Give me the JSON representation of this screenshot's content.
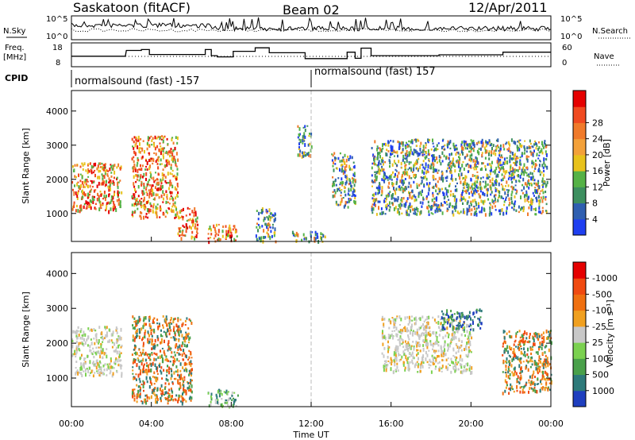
{
  "header": {
    "station": "Saskatoon (fitACF)",
    "beam": "Beam 02",
    "date": "12/Apr/2011"
  },
  "noise_panel": {
    "left_label": "N.Sky",
    "left_ticks": [
      "10^5",
      "10^0"
    ],
    "right_label": "N.Search",
    "right_ticks": [
      "10^5",
      "10^0"
    ]
  },
  "freq_panel": {
    "left_label_line1": "Freq.",
    "left_label_line2": "[MHz]",
    "left_ticks": [
      "18",
      "8"
    ],
    "right_label": "Nave",
    "right_ticks": [
      "60",
      "0"
    ],
    "steps": [
      [
        0,
        0.58
      ],
      [
        2.7,
        0.58
      ],
      [
        2.75,
        0.25
      ],
      [
        3.5,
        0.25
      ],
      [
        3.5,
        0.2
      ],
      [
        3.9,
        0.2
      ],
      [
        3.9,
        0.48
      ],
      [
        6.7,
        0.48
      ],
      [
        6.7,
        0.2
      ],
      [
        7.0,
        0.2
      ],
      [
        7.0,
        0.55
      ],
      [
        7.3,
        0.55
      ],
      [
        7.3,
        0.62
      ],
      [
        8.1,
        0.62
      ],
      [
        8.1,
        0.3
      ],
      [
        9.2,
        0.3
      ],
      [
        9.2,
        0.1
      ],
      [
        9.9,
        0.1
      ],
      [
        9.9,
        0.38
      ],
      [
        11.7,
        0.38
      ],
      [
        11.7,
        0.72
      ],
      [
        13.8,
        0.72
      ],
      [
        13.8,
        0.35
      ],
      [
        14.2,
        0.35
      ],
      [
        14.2,
        0.7
      ],
      [
        14.5,
        0.7
      ],
      [
        14.5,
        0.12
      ],
      [
        15.0,
        0.12
      ],
      [
        15.0,
        0.55
      ],
      [
        18.4,
        0.55
      ],
      [
        18.4,
        0.5
      ],
      [
        21.6,
        0.5
      ],
      [
        21.6,
        0.35
      ],
      [
        24,
        0.35
      ]
    ]
  },
  "cpid": {
    "label": "CPID",
    "left_program": "normalsound (fast) -157",
    "right_program": "normalsound (fast) 157"
  },
  "axes": {
    "ylabel": "Slant Range [km]",
    "xlabel": "Time UT",
    "y_ticks": [
      "1000",
      "2000",
      "3000",
      "4000"
    ],
    "x_ticks": [
      "00:00",
      "04:00",
      "08:00",
      "12:00",
      "16:00",
      "20:00",
      "00:00"
    ]
  },
  "chart_data": [
    {
      "type": "heatmap",
      "title": "",
      "xlabel": "",
      "ylabel": "Slant Range [km]",
      "xlim_hours": [
        0,
        24
      ],
      "ylim": [
        180,
        4600
      ],
      "colorbar": {
        "label": "Power [dB]",
        "ticks": [
          "4",
          "8",
          "12",
          "16",
          "20",
          "24",
          "28"
        ],
        "colors": [
          "#1f3ff0",
          "#2f5fb0",
          "#3d8f5f",
          "#55b246",
          "#e8c21c",
          "#f3a13a",
          "#f07a2a",
          "#f04a20",
          "#e50000"
        ]
      },
      "regions": [
        {
          "t0": 0.0,
          "t1": 2.5,
          "r0": 1100,
          "r1": 2500,
          "value": "high"
        },
        {
          "t0": 3.0,
          "t1": 5.3,
          "r0": 900,
          "r1": 3300,
          "value": "high"
        },
        {
          "t0": 5.3,
          "t1": 6.3,
          "r0": 300,
          "r1": 1200,
          "value": "high"
        },
        {
          "t0": 6.8,
          "t1": 8.3,
          "r0": 200,
          "r1": 700,
          "value": "high"
        },
        {
          "t0": 9.2,
          "t1": 10.2,
          "r0": 200,
          "r1": 1200,
          "value": "mid"
        },
        {
          "t0": 11.0,
          "t1": 12.7,
          "r0": 200,
          "r1": 500,
          "value": "mid"
        },
        {
          "t0": 11.3,
          "t1": 12.0,
          "r0": 2700,
          "r1": 3600,
          "value": "mid"
        },
        {
          "t0": 13.0,
          "t1": 14.2,
          "r0": 1200,
          "r1": 2800,
          "value": "mid"
        },
        {
          "t0": 15.0,
          "t1": 23.8,
          "r0": 1000,
          "r1": 3200,
          "value": "mid"
        }
      ]
    },
    {
      "type": "heatmap",
      "title": "",
      "xlabel": "Time UT",
      "ylabel": "Slant Range [km]",
      "xlim_hours": [
        0,
        24
      ],
      "ylim": [
        180,
        4600
      ],
      "colorbar": {
        "label": "Velocity [m s⁻¹]",
        "ticks": [
          "1000",
          "500",
          "100",
          "25",
          "-25",
          "-100",
          "-500",
          "-1000"
        ],
        "colors": [
          "#1f3fbf",
          "#2d7a7a",
          "#49a04a",
          "#7bd150",
          "#c8c8c8",
          "#f0a020",
          "#f07010",
          "#f04a10",
          "#e50000"
        ]
      },
      "regions": [
        {
          "t0": 0.0,
          "t1": 2.5,
          "r0": 1100,
          "r1": 2500,
          "value": "near-zero"
        },
        {
          "t0": 3.0,
          "t1": 6.0,
          "r0": 300,
          "r1": 2800,
          "value": "negative"
        },
        {
          "t0": 6.8,
          "t1": 8.3,
          "r0": 200,
          "r1": 700,
          "value": "positive"
        },
        {
          "t0": 15.5,
          "t1": 20.0,
          "r0": 1200,
          "r1": 2800,
          "value": "near-zero"
        },
        {
          "t0": 18.5,
          "t1": 20.5,
          "r0": 2400,
          "r1": 3000,
          "value": "positive-high"
        },
        {
          "t0": 21.5,
          "t1": 24.0,
          "r0": 600,
          "r1": 2400,
          "value": "negative"
        }
      ]
    }
  ]
}
